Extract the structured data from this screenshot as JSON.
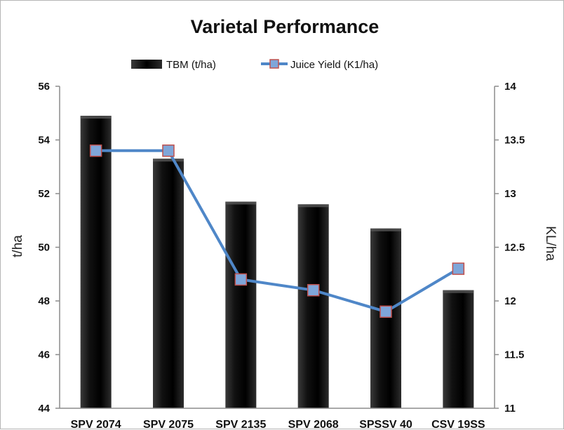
{
  "chart_data": {
    "type": "bar",
    "title": "Varietal Performance",
    "categories": [
      "SPV 2074",
      "SPV 2075",
      "SPV 2135",
      "SPV 2068",
      "SPSSV 40",
      "CSV 19SS"
    ],
    "series": [
      {
        "name": "TBM (t/ha)",
        "type": "bar",
        "axis": "left",
        "color": "#111111",
        "values": [
          54.9,
          53.3,
          51.7,
          51.6,
          50.7,
          48.4
        ]
      },
      {
        "name": "Juice Yield (K1/ha)",
        "type": "line",
        "axis": "right",
        "color": "#4f87c8",
        "marker_color": "#7fa6d9",
        "marker_edge": "#c0504d",
        "values": [
          13.4,
          13.4,
          12.2,
          12.1,
          11.9,
          12.3
        ]
      }
    ],
    "ylabel": "t/ha",
    "y2label": "KL/ha",
    "ylim": [
      44,
      56
    ],
    "y2lim": [
      11,
      14
    ],
    "yticks": [
      "44",
      "46",
      "48",
      "50",
      "52",
      "54",
      "56"
    ],
    "y2ticks": [
      "11",
      "11.5",
      "12",
      "12.5",
      "13",
      "13.5",
      "14"
    ],
    "grid": false,
    "legend_position": "top"
  }
}
